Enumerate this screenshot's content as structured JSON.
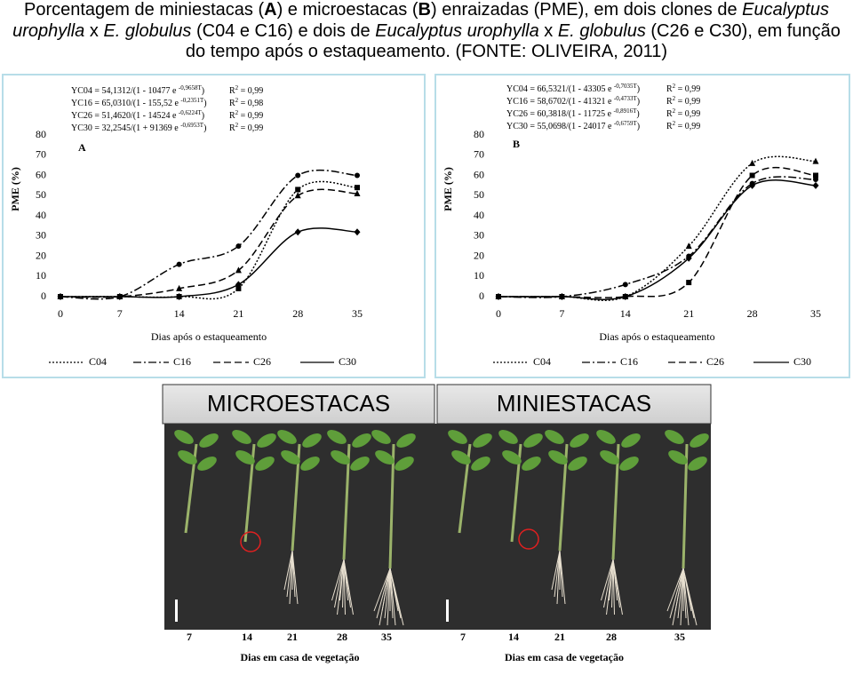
{
  "title": [
    "Porcentagem de miniestacas (",
    "A",
    ") e microestacas (",
    "B",
    ") enraizadas (PME), em dois clones de ",
    "Eucalyptus urophylla",
    " x ",
    "E. globulus",
    " (C04 e C16) e dois de ",
    "Eucalyptus urophylla",
    " x ",
    "E. globulus",
    " (C26 e C30), em função do tempo após o estaqueamento. (FONTE: OLIVEIRA, 2011)"
  ],
  "chart_data": [
    {
      "type": "line",
      "panel": "A",
      "xlabel": "Dias após o estaqueamento",
      "ylabel": "PME (%)",
      "x": [
        0,
        7,
        14,
        21,
        28,
        35
      ],
      "xlim": [
        0,
        35
      ],
      "xticks": [
        0,
        7,
        14,
        21,
        28,
        35
      ],
      "ylim": [
        0,
        80
      ],
      "yticks": [
        0,
        10,
        20,
        30,
        40,
        50,
        60,
        70,
        80
      ],
      "equations": [
        [
          "YC04 = 54,1312/(1 - 10477 e ",
          "-0,9658T",
          ")",
          "R",
          "2",
          " = 0,99"
        ],
        [
          "YC16 = 65,0310/(1 - 155,52 e ",
          "-0,2351T",
          ")",
          "R",
          "2",
          " = 0,98"
        ],
        [
          "YC26 = 51,4620/(1 - 14524 e ",
          "-0,6224T",
          ")",
          "R",
          "2",
          " = 0,99"
        ],
        [
          "YC30 = 32,2545/(1 + 91369 e ",
          "-0,6953T",
          ")",
          "R",
          "2",
          " = 0,99"
        ]
      ],
      "series": [
        {
          "name": "C04",
          "color": "#000000",
          "line_style": "dotted",
          "marker": "square",
          "values": [
            0,
            0,
            0,
            4,
            53,
            54
          ]
        },
        {
          "name": "C16",
          "color": "#000000",
          "line_style": "dashdot",
          "marker": "circle",
          "values": [
            0,
            0,
            16,
            25,
            60,
            60
          ]
        },
        {
          "name": "C26",
          "color": "#000000",
          "line_style": "dashed",
          "marker": "triangle",
          "values": [
            0,
            0,
            4,
            13,
            50,
            51
          ]
        },
        {
          "name": "C30",
          "color": "#000000",
          "line_style": "solid",
          "marker": "diamond",
          "values": [
            0,
            0,
            0,
            6,
            32,
            32
          ]
        }
      ]
    },
    {
      "type": "line",
      "panel": "B",
      "xlabel": "Dias após o estaqueamento",
      "ylabel": "PME (%)",
      "x": [
        0,
        7,
        14,
        21,
        28,
        35
      ],
      "xlim": [
        0,
        35
      ],
      "xticks": [
        0,
        7,
        14,
        21,
        28,
        35
      ],
      "ylim": [
        0,
        80
      ],
      "yticks": [
        0,
        10,
        20,
        30,
        40,
        50,
        60,
        70,
        80
      ],
      "equations": [
        [
          "YC04 = 66,5321/(1 - 43305 e ",
          "-0,7035T",
          ")",
          "R",
          "2",
          " = 0,99"
        ],
        [
          "YC16 = 58,6702/(1 - 41321 e ",
          "-0,4733T",
          ")",
          "R",
          "2",
          " = 0,99"
        ],
        [
          "YC26 = 60,3818/(1 - 11725 e ",
          "-0,8916T",
          ")",
          "R",
          "2",
          " = 0,99"
        ],
        [
          "YC30 = 55,0698/(1 - 24017 e ",
          "-0,6759T",
          ")",
          "R",
          "2",
          " = 0,99"
        ]
      ],
      "series": [
        {
          "name": "C04",
          "color": "#000000",
          "line_style": "dotted",
          "marker": "triangle",
          "values": [
            0,
            0,
            0,
            25,
            66,
            67
          ]
        },
        {
          "name": "C16",
          "color": "#000000",
          "line_style": "dashdot",
          "marker": "circle",
          "values": [
            0,
            0,
            6,
            20,
            56,
            58
          ]
        },
        {
          "name": "C26",
          "color": "#000000",
          "line_style": "dashed",
          "marker": "square",
          "values": [
            0,
            0,
            0,
            7,
            60,
            60
          ]
        },
        {
          "name": "C30",
          "color": "#000000",
          "line_style": "solid",
          "marker": "diamond",
          "values": [
            0,
            0,
            0,
            19,
            55,
            55
          ]
        }
      ]
    }
  ],
  "photos": [
    {
      "label": "MICROESTACAS",
      "days": [
        7,
        14,
        21,
        28,
        35
      ],
      "caption": "Dias em casa de vegetação"
    },
    {
      "label": "MINIESTACAS",
      "days": [
        7,
        14,
        21,
        28,
        35
      ],
      "caption": "Dias em casa de vegetação"
    }
  ]
}
